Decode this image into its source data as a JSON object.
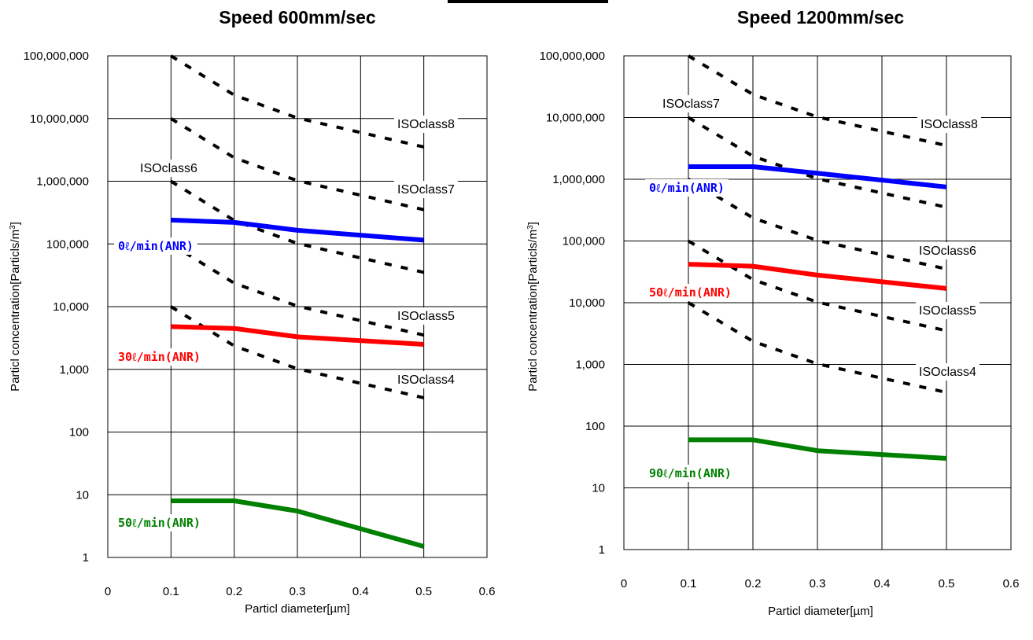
{
  "chart_data": [
    {
      "type": "line",
      "title": "Speed 600mm/sec",
      "xlabel": "Particl diameter[µm]",
      "ylabel": "Particl concentration[Particls/m",
      "ylabel_sup": "3",
      "ylabel_end": "]",
      "xlim": [
        0,
        0.6
      ],
      "xticks": [
        "0",
        "0.1",
        "0.2",
        "0.3",
        "0.4",
        "0.5",
        "0.6"
      ],
      "yscale": "log",
      "ylim": [
        1,
        100000000
      ],
      "yticks": [
        "1",
        "10",
        "100",
        "1,000",
        "10,000",
        "100,000",
        "1,000,000",
        "10,000,000",
        "100,000,000"
      ],
      "grid": true,
      "x": [
        0.1,
        0.2,
        0.3,
        0.5
      ],
      "series": [
        {
          "name": "0ℓ/min(ANR)",
          "values": [
            240000,
            220000,
            165000,
            115000
          ],
          "color": "#0000ff"
        },
        {
          "name": "30ℓ/min(ANR)",
          "values": [
            4800,
            4500,
            3300,
            2500
          ],
          "color": "#ff0000"
        },
        {
          "name": "50ℓ/min(ANR)",
          "values": [
            8,
            8,
            5.5,
            1.5
          ],
          "color": "#008000"
        }
      ],
      "iso_classes": [
        {
          "name": "ISOclass4",
          "values": [
            10000,
            2370,
            1020,
            352
          ]
        },
        {
          "name": "ISOclass5",
          "values": [
            100000,
            23700,
            10200,
            3520
          ]
        },
        {
          "name": "ISOclass6",
          "values": [
            1000000,
            237000,
            102000,
            35200
          ]
        },
        {
          "name": "ISOclass7",
          "values": [
            10000000,
            2370000,
            1020000,
            352000
          ]
        },
        {
          "name": "ISOclass8",
          "values": [
            100000000,
            23700000,
            10200000,
            3520000
          ]
        }
      ],
      "iso_labels_shown": [
        "ISOclass4",
        "ISOclass5",
        "ISOclass6",
        "ISOclass7",
        "ISOclass8"
      ]
    },
    {
      "type": "line",
      "title": "Speed 1200mm/sec",
      "xlabel": "Particl diameter[µm]",
      "ylabel": "Particl concentration[Particls/m",
      "ylabel_sup": "3",
      "ylabel_end": "]",
      "xlim": [
        0,
        0.6
      ],
      "xticks": [
        "0",
        "0.1",
        "0.2",
        "0.3",
        "0.4",
        "0.5",
        "0.6"
      ],
      "yscale": "log",
      "ylim": [
        1,
        100000000
      ],
      "yticks": [
        "1",
        "10",
        "100",
        "1,000",
        "10,000",
        "100,000",
        "1,000,000",
        "10,000,000",
        "100,000,000"
      ],
      "grid": true,
      "x": [
        0.1,
        0.2,
        0.3,
        0.5
      ],
      "series": [
        {
          "name": "0ℓ/min(ANR)",
          "values": [
            1600000,
            1600000,
            1250000,
            750000
          ],
          "color": "#0000ff"
        },
        {
          "name": "50ℓ/min(ANR)",
          "values": [
            42000,
            39000,
            28000,
            17000
          ],
          "color": "#ff0000"
        },
        {
          "name": "90ℓ/min(ANR)",
          "values": [
            60,
            60,
            40,
            30
          ],
          "color": "#008000"
        }
      ],
      "iso_classes": [
        {
          "name": "ISOclass4",
          "values": [
            10000,
            2370,
            1020,
            352
          ]
        },
        {
          "name": "ISOclass5",
          "values": [
            100000,
            23700,
            10200,
            3520
          ]
        },
        {
          "name": "ISOclass6",
          "values": [
            1000000,
            237000,
            102000,
            35200
          ]
        },
        {
          "name": "ISOclass7",
          "values": [
            10000000,
            2370000,
            1020000,
            352000
          ]
        },
        {
          "name": "ISOclass8",
          "values": [
            100000000,
            23700000,
            10200000,
            3520000
          ]
        }
      ],
      "iso_labels_shown": [
        "ISOclass4",
        "ISOclass5",
        "ISOclass6",
        "ISOclass7",
        "ISOclass8"
      ]
    }
  ]
}
